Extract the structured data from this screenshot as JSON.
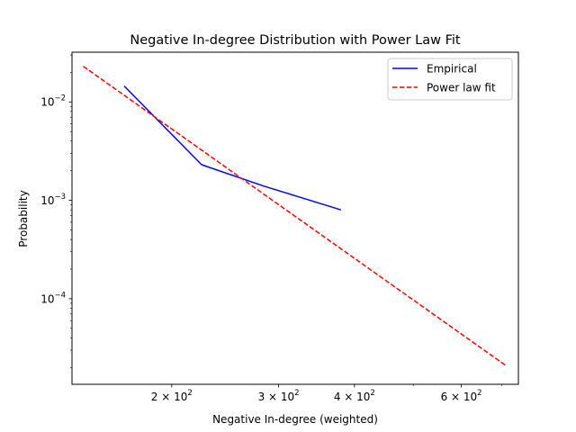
{
  "chart_data": {
    "type": "line",
    "title": "Negative In-degree Distribution with Power Law Fit",
    "xlabel": "Negative In-degree (weighted)",
    "ylabel": "Probability",
    "xscale": "log",
    "yscale": "log",
    "xlim": [
      137,
      745
    ],
    "ylim": [
      1.35e-05,
      0.032
    ],
    "grid": false,
    "legend_position": "upper right",
    "x_major_ticks": [
      {
        "value": 200,
        "mantissa": "2",
        "exp": "2"
      },
      {
        "value": 300,
        "mantissa": "3",
        "exp": "2"
      },
      {
        "value": 400,
        "mantissa": "4",
        "exp": "2"
      },
      {
        "value": 600,
        "mantissa": "6",
        "exp": "2"
      }
    ],
    "x_minor_ticks": [
      500,
      700
    ],
    "y_major_ticks": [
      {
        "value": 0.01,
        "base": "10",
        "exp": "−2"
      },
      {
        "value": 0.001,
        "base": "10",
        "exp": "−3"
      },
      {
        "value": 0.0001,
        "base": "10",
        "exp": "−4"
      }
    ],
    "series": [
      {
        "name": "Empirical",
        "color": "#0000ff",
        "style": "solid",
        "x": [
          167,
          224,
          283,
          380
        ],
        "y": [
          0.0145,
          0.0023,
          0.0014,
          0.0008
        ]
      },
      {
        "name": "Power law fit",
        "color": "#ff0000",
        "style": "dashed",
        "x": [
          143,
          710
        ],
        "y": [
          0.023,
          2.1e-05
        ]
      }
    ]
  }
}
